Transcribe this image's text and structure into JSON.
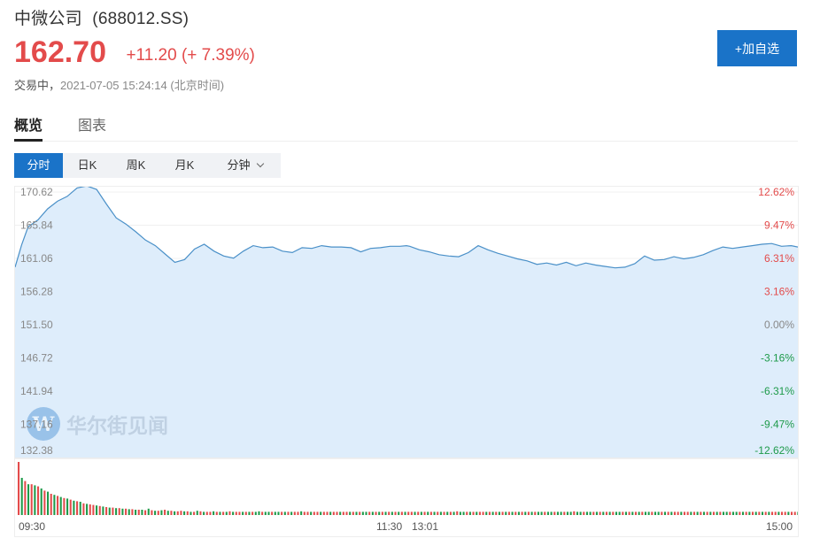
{
  "header": {
    "stock_name": "中微公司",
    "ticker": "(688012.SS)",
    "price": "162.70",
    "change": "+11.20",
    "change_pct": "(+ 7.39%)",
    "status": "交易中，",
    "timestamp": "2021-07-05 15:24:14",
    "timezone": "(北京时间)",
    "add_button": "+加自选"
  },
  "tabs": [
    {
      "label": "概览",
      "active": true
    },
    {
      "label": "图表",
      "active": false
    }
  ],
  "periods": [
    {
      "label": "分时",
      "active": true
    },
    {
      "label": "日K",
      "active": false
    },
    {
      "label": "周K",
      "active": false
    },
    {
      "label": "月K",
      "active": false
    },
    {
      "label": "分钟",
      "active": false,
      "dropdown": true
    }
  ],
  "watermark": "华尔街见闻",
  "colors": {
    "up": "#e34b4b",
    "down": "#1e9a4a",
    "line": "#4a90c8",
    "area": "#deedfb",
    "accent": "#1a73c8"
  },
  "chart_data": {
    "type": "area",
    "prev_close": 151.5,
    "y_ticks": [
      "170.62",
      "165.84",
      "161.06",
      "156.28",
      "151.50",
      "146.72",
      "141.94",
      "137.16",
      "132.38"
    ],
    "pct_ticks": [
      "12.62%",
      "9.47%",
      "6.31%",
      "3.16%",
      "0.00%",
      "-3.16%",
      "-6.31%",
      "-9.47%",
      "-12.62%"
    ],
    "ylim": [
      132.38,
      170.62
    ],
    "x_ticks": [
      "09:30",
      "11:30",
      "13:01",
      "15:00"
    ],
    "x_tick_index": [
      0,
      120,
      121,
      240
    ],
    "price_points": [
      [
        0,
        159.8
      ],
      [
        2,
        163.0
      ],
      [
        4,
        165.6
      ],
      [
        7,
        166.6
      ],
      [
        10,
        168.2
      ],
      [
        13,
        169.3
      ],
      [
        16,
        170.0
      ],
      [
        19,
        171.2
      ],
      [
        22,
        171.5
      ],
      [
        25,
        171.0
      ],
      [
        28,
        168.9
      ],
      [
        31,
        166.9
      ],
      [
        34,
        166.0
      ],
      [
        37,
        164.9
      ],
      [
        40,
        163.7
      ],
      [
        43,
        162.9
      ],
      [
        46,
        161.7
      ],
      [
        49,
        160.5
      ],
      [
        52,
        160.9
      ],
      [
        55,
        162.4
      ],
      [
        58,
        163.1
      ],
      [
        61,
        162.1
      ],
      [
        64,
        161.4
      ],
      [
        67,
        161.1
      ],
      [
        70,
        162.1
      ],
      [
        73,
        162.9
      ],
      [
        76,
        162.6
      ],
      [
        79,
        162.7
      ],
      [
        82,
        162.1
      ],
      [
        85,
        161.9
      ],
      [
        88,
        162.6
      ],
      [
        91,
        162.5
      ],
      [
        94,
        162.9
      ],
      [
        97,
        162.7
      ],
      [
        100,
        162.7
      ],
      [
        103,
        162.6
      ],
      [
        106,
        162.0
      ],
      [
        109,
        162.5
      ],
      [
        112,
        162.6
      ],
      [
        115,
        162.8
      ],
      [
        118,
        162.8
      ],
      [
        120,
        162.9
      ],
      [
        121,
        162.8
      ],
      [
        124,
        162.3
      ],
      [
        127,
        162.0
      ],
      [
        130,
        161.6
      ],
      [
        133,
        161.4
      ],
      [
        136,
        161.3
      ],
      [
        139,
        161.9
      ],
      [
        142,
        162.9
      ],
      [
        145,
        162.3
      ],
      [
        148,
        161.8
      ],
      [
        151,
        161.4
      ],
      [
        154,
        161.0
      ],
      [
        157,
        160.7
      ],
      [
        160,
        160.2
      ],
      [
        163,
        160.4
      ],
      [
        166,
        160.1
      ],
      [
        169,
        160.5
      ],
      [
        172,
        160.0
      ],
      [
        175,
        160.4
      ],
      [
        178,
        160.1
      ],
      [
        181,
        159.9
      ],
      [
        184,
        159.7
      ],
      [
        187,
        159.8
      ],
      [
        190,
        160.3
      ],
      [
        193,
        161.4
      ],
      [
        196,
        160.8
      ],
      [
        199,
        160.9
      ],
      [
        202,
        161.3
      ],
      [
        205,
        161.0
      ],
      [
        208,
        161.2
      ],
      [
        211,
        161.6
      ],
      [
        214,
        162.2
      ],
      [
        217,
        162.7
      ],
      [
        220,
        162.5
      ],
      [
        223,
        162.7
      ],
      [
        226,
        162.9
      ],
      [
        229,
        163.1
      ],
      [
        232,
        163.2
      ],
      [
        235,
        162.8
      ],
      [
        238,
        162.9
      ],
      [
        240,
        162.7
      ]
    ],
    "volume": [
      100,
      70,
      64,
      58,
      58,
      56,
      54,
      50,
      46,
      44,
      40,
      38,
      36,
      34,
      32,
      31,
      29,
      27,
      26,
      25,
      22,
      21,
      20,
      19,
      18,
      17,
      16,
      15,
      14,
      14,
      13,
      13,
      12,
      12,
      11,
      11,
      10,
      10,
      10,
      9,
      12,
      9,
      8,
      8,
      9,
      10,
      8,
      8,
      7,
      7,
      8,
      7,
      7,
      6,
      6,
      8,
      7,
      6,
      6,
      6,
      7,
      6,
      6,
      6,
      6,
      7,
      6,
      6,
      6,
      6,
      6,
      6,
      6,
      6,
      7,
      6,
      6,
      6,
      6,
      6,
      6,
      6,
      6,
      6,
      6,
      6,
      6,
      7,
      6,
      6,
      6,
      6,
      6,
      6,
      6,
      6,
      6,
      6,
      6,
      6,
      6,
      6,
      6,
      6,
      6,
      6,
      6,
      6,
      6,
      6,
      6,
      6,
      6,
      6,
      6,
      6,
      6,
      6,
      6,
      6,
      6,
      6,
      6,
      6,
      6,
      6,
      6,
      6,
      6,
      6,
      6,
      6,
      6,
      6,
      6,
      7,
      6,
      6,
      6,
      6,
      6,
      6,
      6,
      6,
      6,
      6,
      6,
      6,
      6,
      6,
      6,
      6,
      6,
      6,
      6,
      6,
      6,
      6,
      6,
      6,
      6,
      6,
      6,
      6,
      6,
      6,
      6,
      6,
      6,
      6,
      6,
      7,
      6,
      6,
      6,
      6,
      6,
      6,
      6,
      6,
      6,
      6,
      6,
      6,
      6,
      6,
      6,
      6,
      6,
      6,
      6,
      6,
      6,
      6,
      6,
      6,
      6,
      6,
      6,
      6,
      6,
      6,
      6,
      6,
      6,
      6,
      6,
      6,
      6,
      6,
      6,
      6,
      6,
      6,
      6,
      6,
      6,
      6,
      6,
      6,
      6,
      6,
      6,
      6,
      6,
      6,
      6,
      6,
      6,
      6,
      6,
      6,
      6,
      6,
      6,
      6,
      6,
      6,
      6,
      6,
      6
    ]
  }
}
